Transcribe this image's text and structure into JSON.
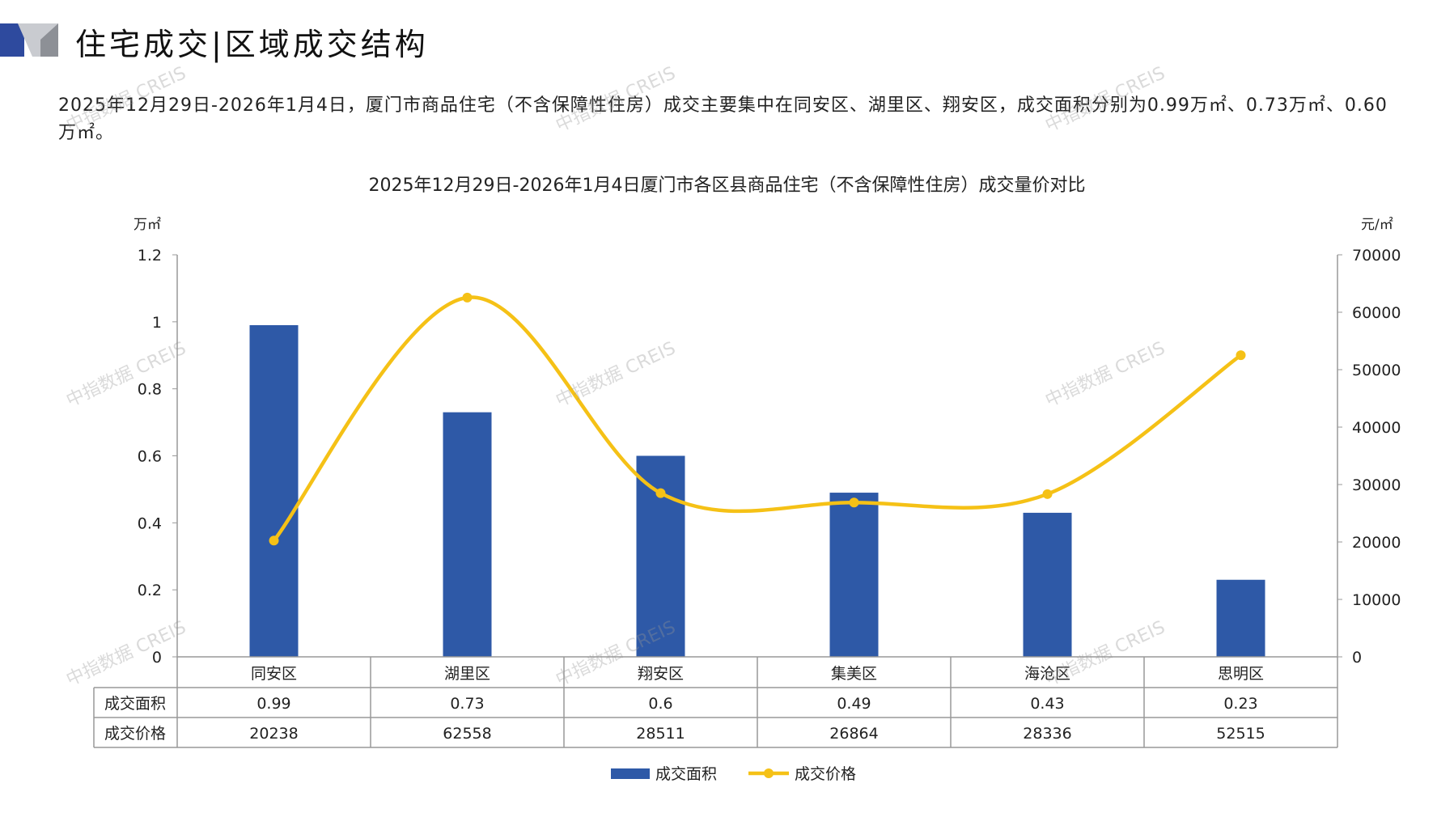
{
  "header": {
    "title": "住宅成交|区域成交结构"
  },
  "summary": "2025年12月29日-2026年1月4日，厦门市商品住宅（不含保障性住房）成交主要集中在同安区、湖里区、翔安区，成交面积分别为0.99万㎡、0.73万㎡、0.60万㎡。",
  "watermark": "中指数据 CREIS",
  "chart_data": {
    "type": "bar+line",
    "title": "2025年12月29日-2026年1月4日厦门市各区县商品住宅（不含保障性住房）成交量价对比",
    "categories": [
      "同安区",
      "湖里区",
      "翔安区",
      "集美区",
      "海沧区",
      "思明区"
    ],
    "y_left": {
      "unit": "万㎡",
      "range": [
        0,
        1.2
      ],
      "ticks": [
        "0",
        "0.2",
        "0.4",
        "0.6",
        "0.8",
        "1",
        "1.2"
      ]
    },
    "y_right": {
      "unit": "元/㎡",
      "range": [
        0,
        70000
      ],
      "ticks": [
        "0",
        "10000",
        "20000",
        "30000",
        "40000",
        "50000",
        "60000",
        "70000"
      ]
    },
    "series": [
      {
        "name": "成交面积",
        "type": "bar",
        "axis": "left",
        "color": "#2E59A7",
        "values": [
          0.99,
          0.73,
          0.6,
          0.49,
          0.43,
          0.23
        ],
        "labels": [
          "0.99",
          "0.73",
          "0.6",
          "0.49",
          "0.43",
          "0.23"
        ]
      },
      {
        "name": "成交价格",
        "type": "line",
        "smooth": true,
        "axis": "right",
        "color": "#F5C116",
        "values": [
          20238,
          62558,
          28511,
          26864,
          28336,
          52515
        ],
        "labels": [
          "20238",
          "62558",
          "28511",
          "26864",
          "28336",
          "52515"
        ]
      }
    ],
    "data_table": true,
    "legend": "bottom",
    "grid": false
  }
}
